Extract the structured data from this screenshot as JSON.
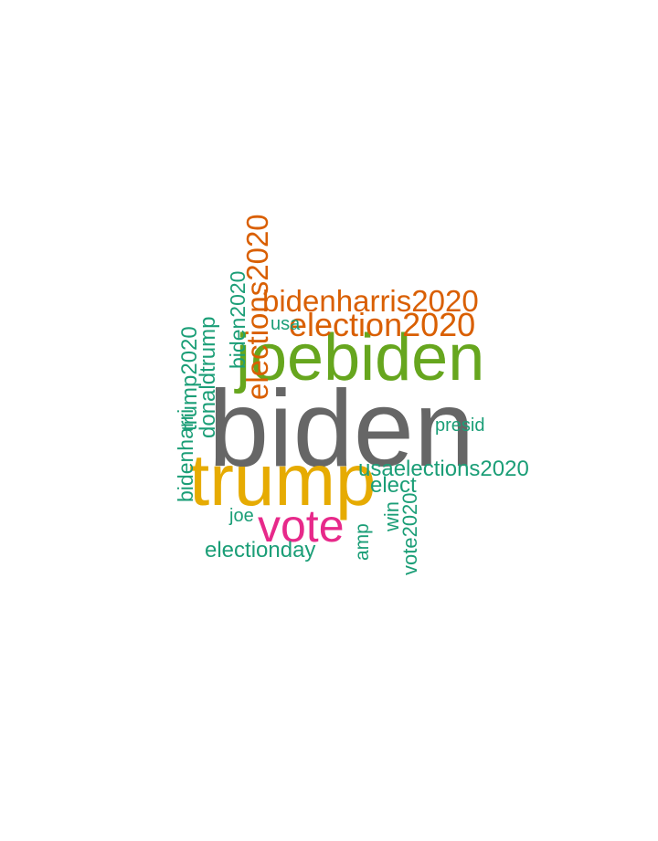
{
  "words": [
    {
      "text": "biden",
      "color": "#666666"
    },
    {
      "text": "trump",
      "color": "#E6AB02"
    },
    {
      "text": "joebiden",
      "color": "#66A61E"
    },
    {
      "text": "vote",
      "color": "#E7298A"
    },
    {
      "text": "bidenharris2020",
      "color": "#D95F02"
    },
    {
      "text": "election2020",
      "color": "#D95F02"
    },
    {
      "text": "elections2020",
      "color": "#D95F02"
    },
    {
      "text": "usaelections2020",
      "color": "#1B9E77"
    },
    {
      "text": "electionday",
      "color": "#1B9E77"
    },
    {
      "text": "elect",
      "color": "#1B9E77"
    },
    {
      "text": "presid",
      "color": "#1B9E77"
    },
    {
      "text": "joe",
      "color": "#1B9E77"
    },
    {
      "text": "usa",
      "color": "#1B9E77"
    },
    {
      "text": "biden2020",
      "color": "#1B9E77"
    },
    {
      "text": "bidenharri",
      "color": "#1B9E77"
    },
    {
      "text": "trump2020",
      "color": "#1B9E77"
    },
    {
      "text": "donaldtrump",
      "color": "#1B9E77"
    },
    {
      "text": "amp",
      "color": "#1B9E77"
    },
    {
      "text": "win",
      "color": "#1B9E77"
    },
    {
      "text": "vote2020",
      "color": "#1B9E77"
    }
  ]
}
